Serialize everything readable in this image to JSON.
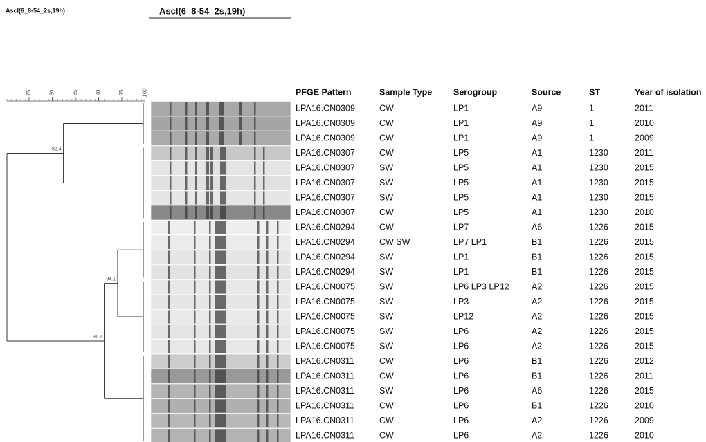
{
  "figure": {
    "label": "AscI(6_8-54_2s,19h)",
    "heading": "AscI(6_8-54_2s,19h)"
  },
  "scale": {
    "ticks": [
      75,
      80,
      85,
      90,
      95,
      100
    ]
  },
  "nodes": [
    {
      "value": 82.4
    },
    {
      "value": 94.1
    },
    {
      "value": 91.2
    }
  ],
  "table": {
    "header": [
      "PFGE Pattern",
      "Sample Type",
      "Serogroup",
      "Source",
      "ST",
      "Year of isolation"
    ],
    "rows": [
      [
        "LPA16.CN0309",
        "CW",
        "LP1",
        "A9",
        "1",
        "2011"
      ],
      [
        "LPA16.CN0309",
        "CW",
        "LP1",
        "A9",
        "1",
        "2010"
      ],
      [
        "LPA16.CN0309",
        "CW",
        "LP1",
        "A9",
        "1",
        "2009"
      ],
      [
        "LPA16.CN0307",
        "CW",
        "LP5",
        "A1",
        "1230",
        "2011"
      ],
      [
        "LPA16.CN0307",
        "SW",
        "LP5",
        "A1",
        "1230",
        "2015"
      ],
      [
        "LPA16.CN0307",
        "SW",
        "LP5",
        "A1",
        "1230",
        "2015"
      ],
      [
        "LPA16.CN0307",
        "SW",
        "LP5",
        "A1",
        "1230",
        "2015"
      ],
      [
        "LPA16.CN0307",
        "CW",
        "LP5",
        "A1",
        "1230",
        "2010"
      ],
      [
        "LPA16.CN0294",
        "CW",
        "LP7",
        "A6",
        "1226",
        "2015"
      ],
      [
        "LPA16.CN0294",
        "CW SW",
        "LP7 LP1",
        "B1",
        "1226",
        "2015"
      ],
      [
        "LPA16.CN0294",
        "SW",
        "LP1",
        "B1",
        "1226",
        "2015"
      ],
      [
        "LPA16.CN0294",
        "SW",
        "LP1",
        "B1",
        "1226",
        "2015"
      ],
      [
        "LPA16.CN0075",
        "SW",
        "LP6 LP3 LP12",
        "A2",
        "1226",
        "2015"
      ],
      [
        "LPA16.CN0075",
        "SW",
        "LP3",
        "A2",
        "1226",
        "2015"
      ],
      [
        "LPA16.CN0075",
        "SW",
        "LP12",
        "A2",
        "1226",
        "2015"
      ],
      [
        "LPA16.CN0075",
        "SW",
        "LP6",
        "A2",
        "1226",
        "2015"
      ],
      [
        "LPA16.CN0075",
        "SW",
        "LP6",
        "A2",
        "1226",
        "2015"
      ],
      [
        "LPA16.CN0311",
        "CW",
        "LP6",
        "B1",
        "1226",
        "2012"
      ],
      [
        "LPA16.CN0311",
        "CW",
        "LP6",
        "B1",
        "1226",
        "2011"
      ],
      [
        "LPA16.CN0311",
        "SW",
        "LP6",
        "A6",
        "1226",
        "2015"
      ],
      [
        "LPA16.CN0311",
        "CW",
        "LP6",
        "B1",
        "1226",
        "2010"
      ],
      [
        "LPA16.CN0311",
        "CW",
        "LP6",
        "A2",
        "1226",
        "2009"
      ],
      [
        "LPA16.CN0311",
        "CW",
        "LP6",
        "A2",
        "1226",
        "2010"
      ]
    ]
  }
}
